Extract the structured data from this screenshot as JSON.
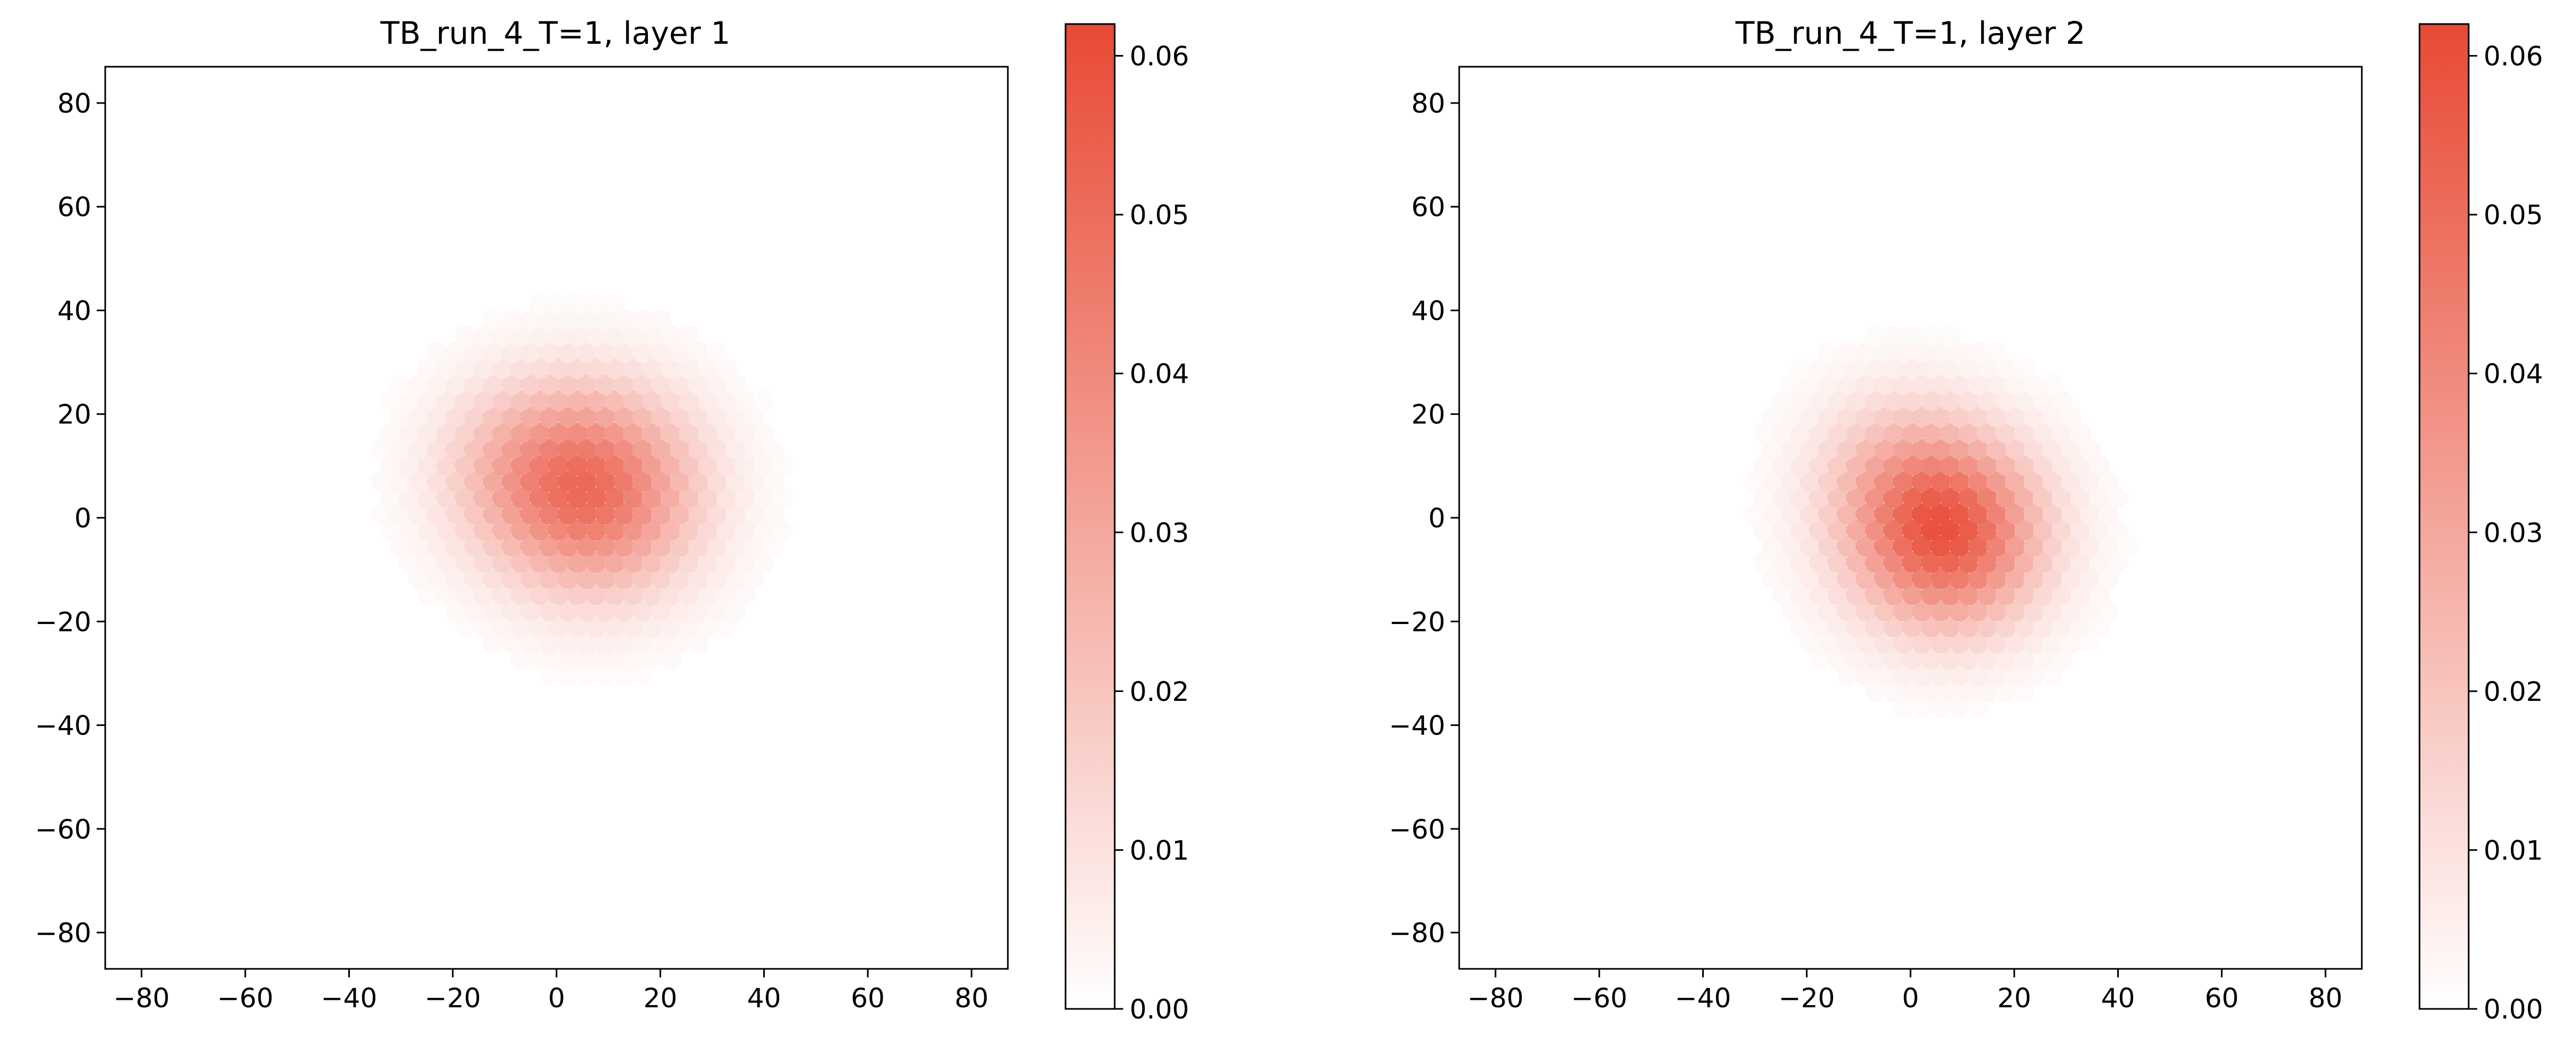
{
  "chart_data": [
    {
      "type": "heatmap",
      "title": "TB_run_4_T=1, layer 1",
      "xlabel": "",
      "ylabel": "",
      "xlim": [
        -87,
        87
      ],
      "ylim": [
        -87,
        87
      ],
      "xticks": [
        -80,
        -60,
        -40,
        -20,
        0,
        20,
        40,
        60,
        80
      ],
      "yticks": [
        80,
        60,
        40,
        20,
        0,
        -20,
        -40,
        -60,
        -80
      ],
      "grid": false,
      "colorbar": {
        "range": [
          0.0,
          0.062
        ],
        "ticks": [
          "0.00",
          "0.01",
          "0.02",
          "0.03",
          "0.04",
          "0.05",
          "0.06"
        ],
        "tick_values": [
          0.0,
          0.01,
          0.02,
          0.03,
          0.04,
          0.05,
          0.06
        ],
        "color_low": "#ffffff",
        "color_high": "#e84a35"
      },
      "blobs": [
        {
          "x": 8,
          "y": 5,
          "sigma": 14,
          "peak": 0.045
        },
        {
          "x": -8,
          "y": 10,
          "sigma": 12,
          "peak": 0.015
        }
      ]
    },
    {
      "type": "heatmap",
      "title": "TB_run_4_T=1, layer 2",
      "xlabel": "",
      "ylabel": "",
      "xlim": [
        -87,
        87
      ],
      "ylim": [
        -87,
        87
      ],
      "xticks": [
        -80,
        -60,
        -40,
        -20,
        0,
        20,
        40,
        60,
        80
      ],
      "yticks": [
        80,
        60,
        40,
        20,
        0,
        -20,
        -40,
        -60,
        -80
      ],
      "grid": false,
      "colorbar": {
        "range": [
          0.0,
          0.062
        ],
        "ticks": [
          "0.00",
          "0.01",
          "0.02",
          "0.03",
          "0.04",
          "0.05",
          "0.06"
        ],
        "tick_values": [
          0.0,
          0.01,
          0.02,
          0.03,
          0.04,
          0.05,
          0.06
        ],
        "color_low": "#ffffff",
        "color_high": "#e84a35"
      },
      "blobs": [
        {
          "x": 7,
          "y": -3,
          "sigma": 13,
          "peak": 0.055
        },
        {
          "x": -4,
          "y": 10,
          "sigma": 12,
          "peak": 0.012
        }
      ]
    }
  ]
}
